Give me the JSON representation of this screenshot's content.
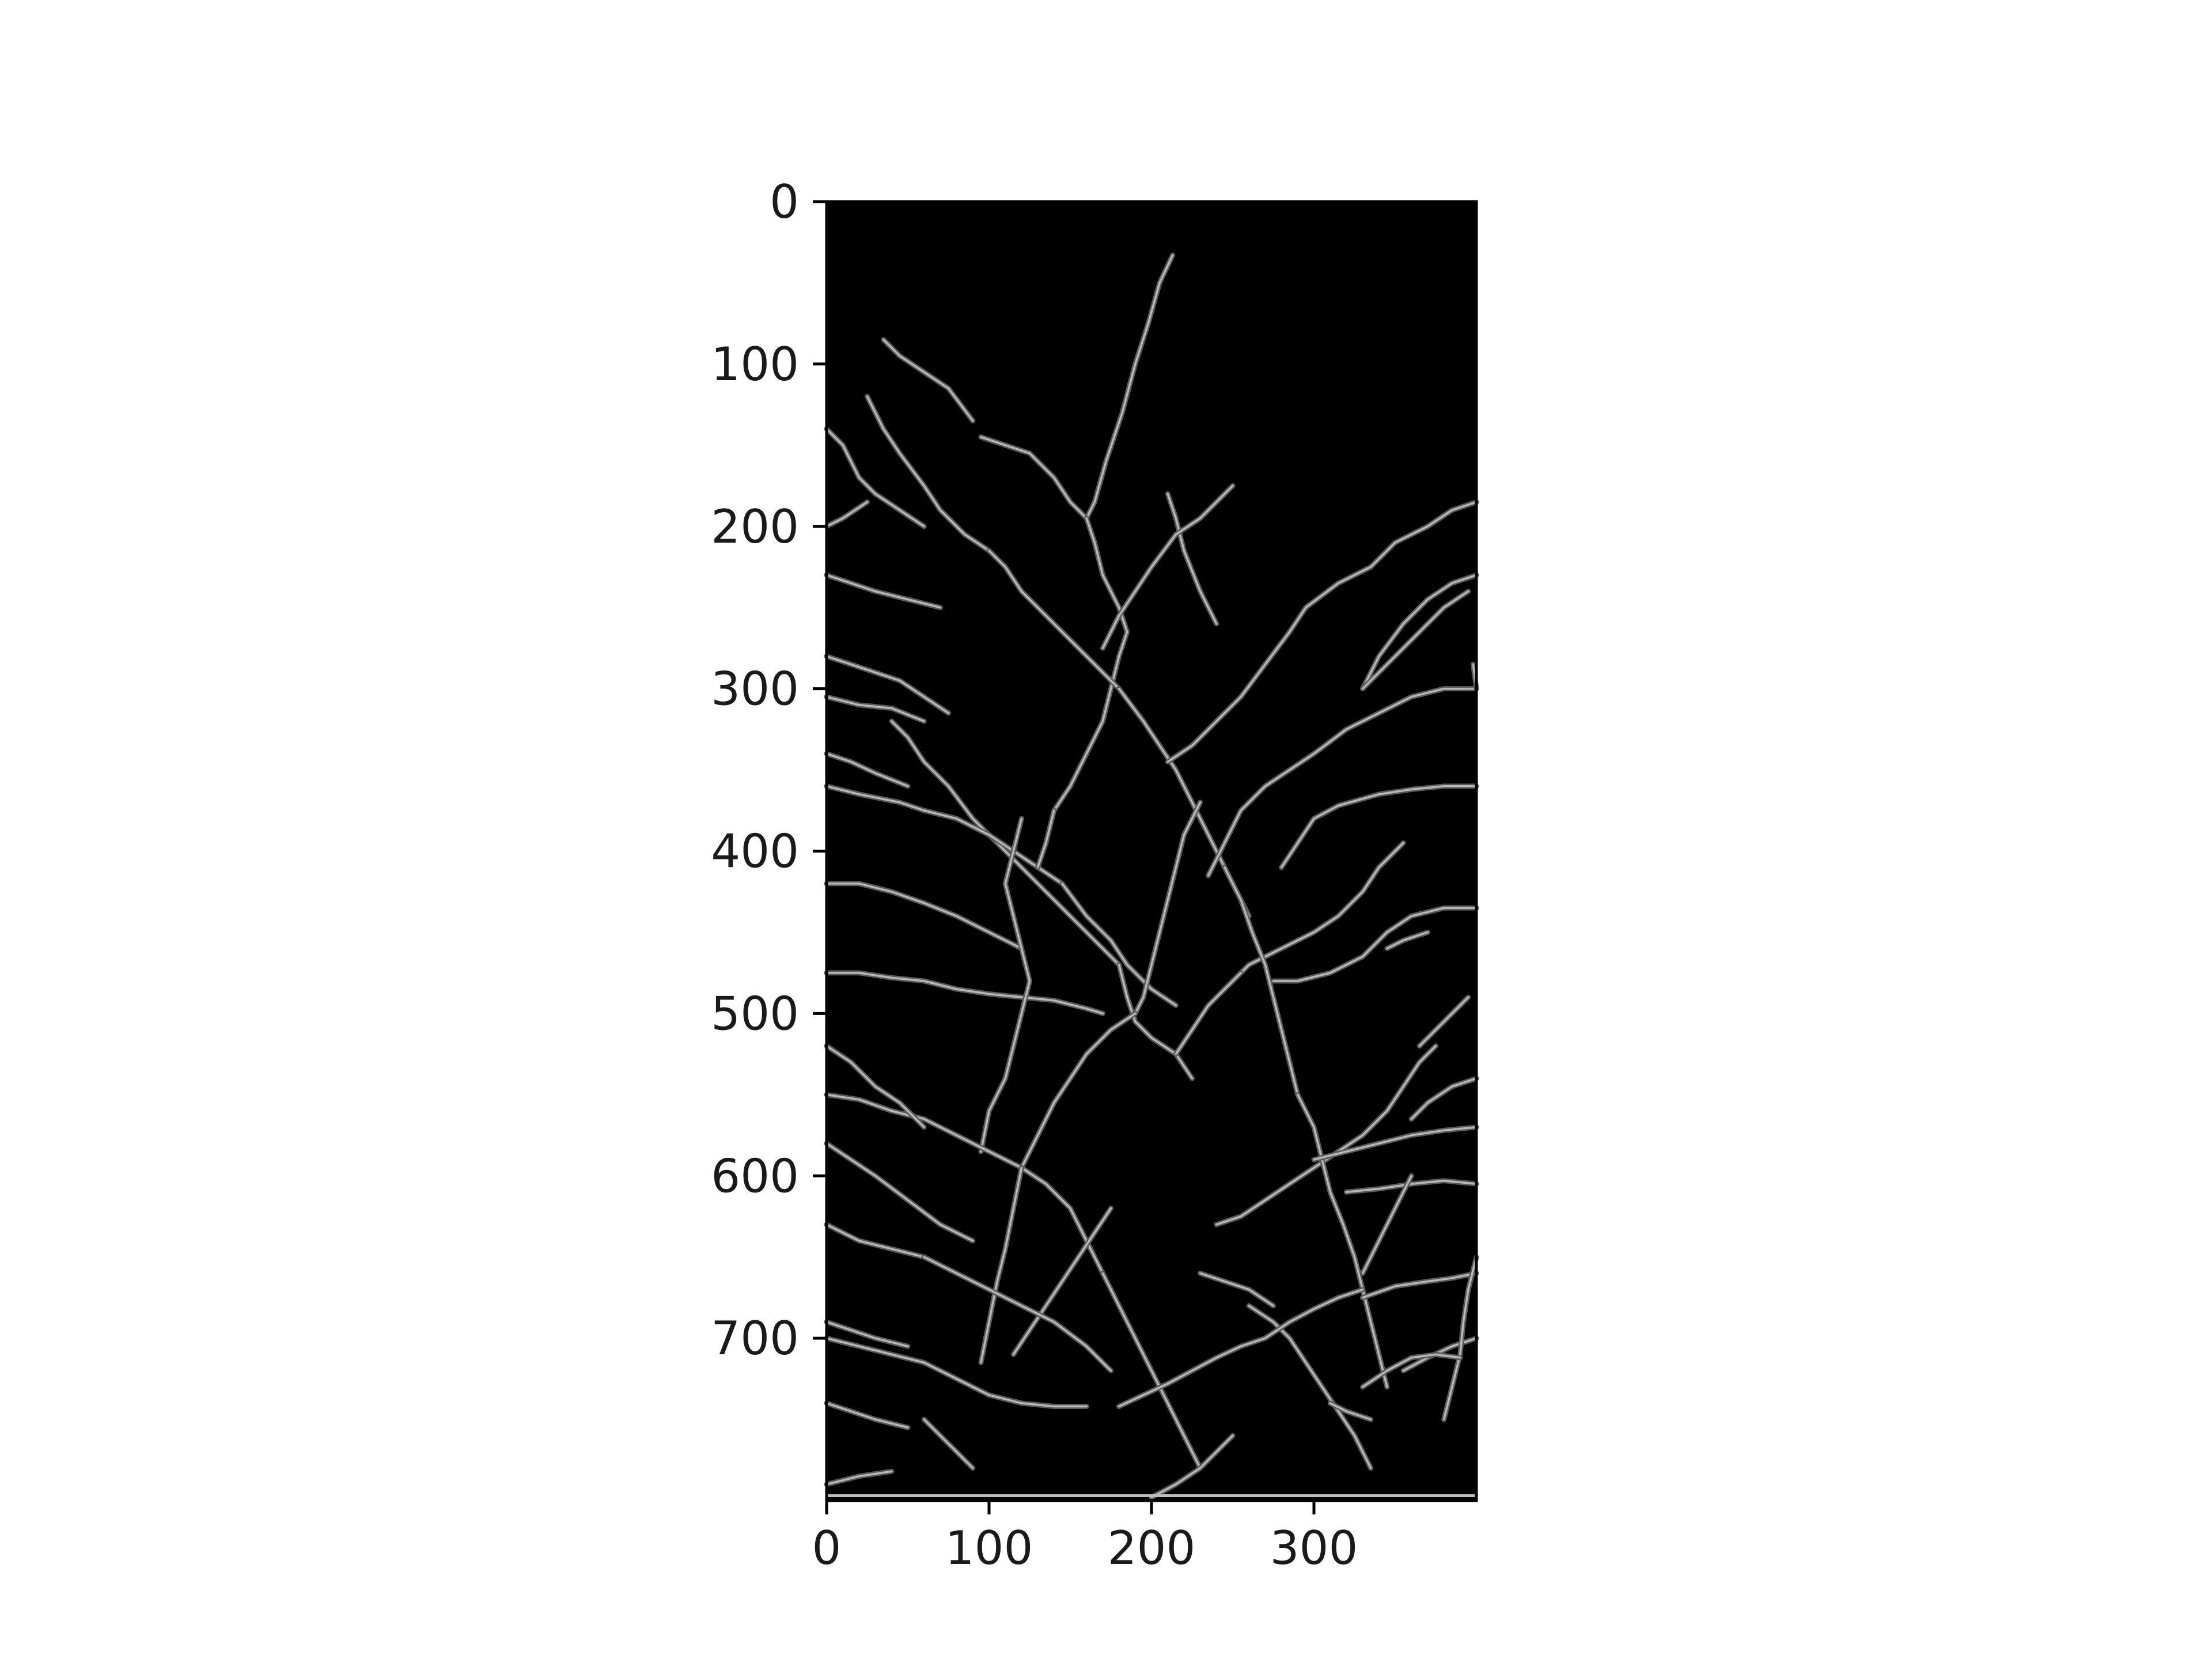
{
  "image": {
    "description_free": true,
    "background_color": "#000000",
    "edge_color": "#b8b8b8",
    "content": "edge-map-cracks"
  },
  "axes": {
    "x_ticks": [
      {
        "value": 0,
        "label": "0"
      },
      {
        "value": 100,
        "label": "100"
      },
      {
        "value": 200,
        "label": "200"
      },
      {
        "value": 300,
        "label": "300"
      }
    ],
    "y_ticks": [
      {
        "value": 0,
        "label": "0"
      },
      {
        "value": 100,
        "label": "100"
      },
      {
        "value": 200,
        "label": "200"
      },
      {
        "value": 300,
        "label": "300"
      },
      {
        "value": 400,
        "label": "400"
      },
      {
        "value": 500,
        "label": "500"
      },
      {
        "value": 600,
        "label": "600"
      },
      {
        "value": 700,
        "label": "700"
      }
    ],
    "x_range": [
      0,
      400
    ],
    "y_range": [
      0,
      800
    ],
    "y_inverted": true
  }
}
